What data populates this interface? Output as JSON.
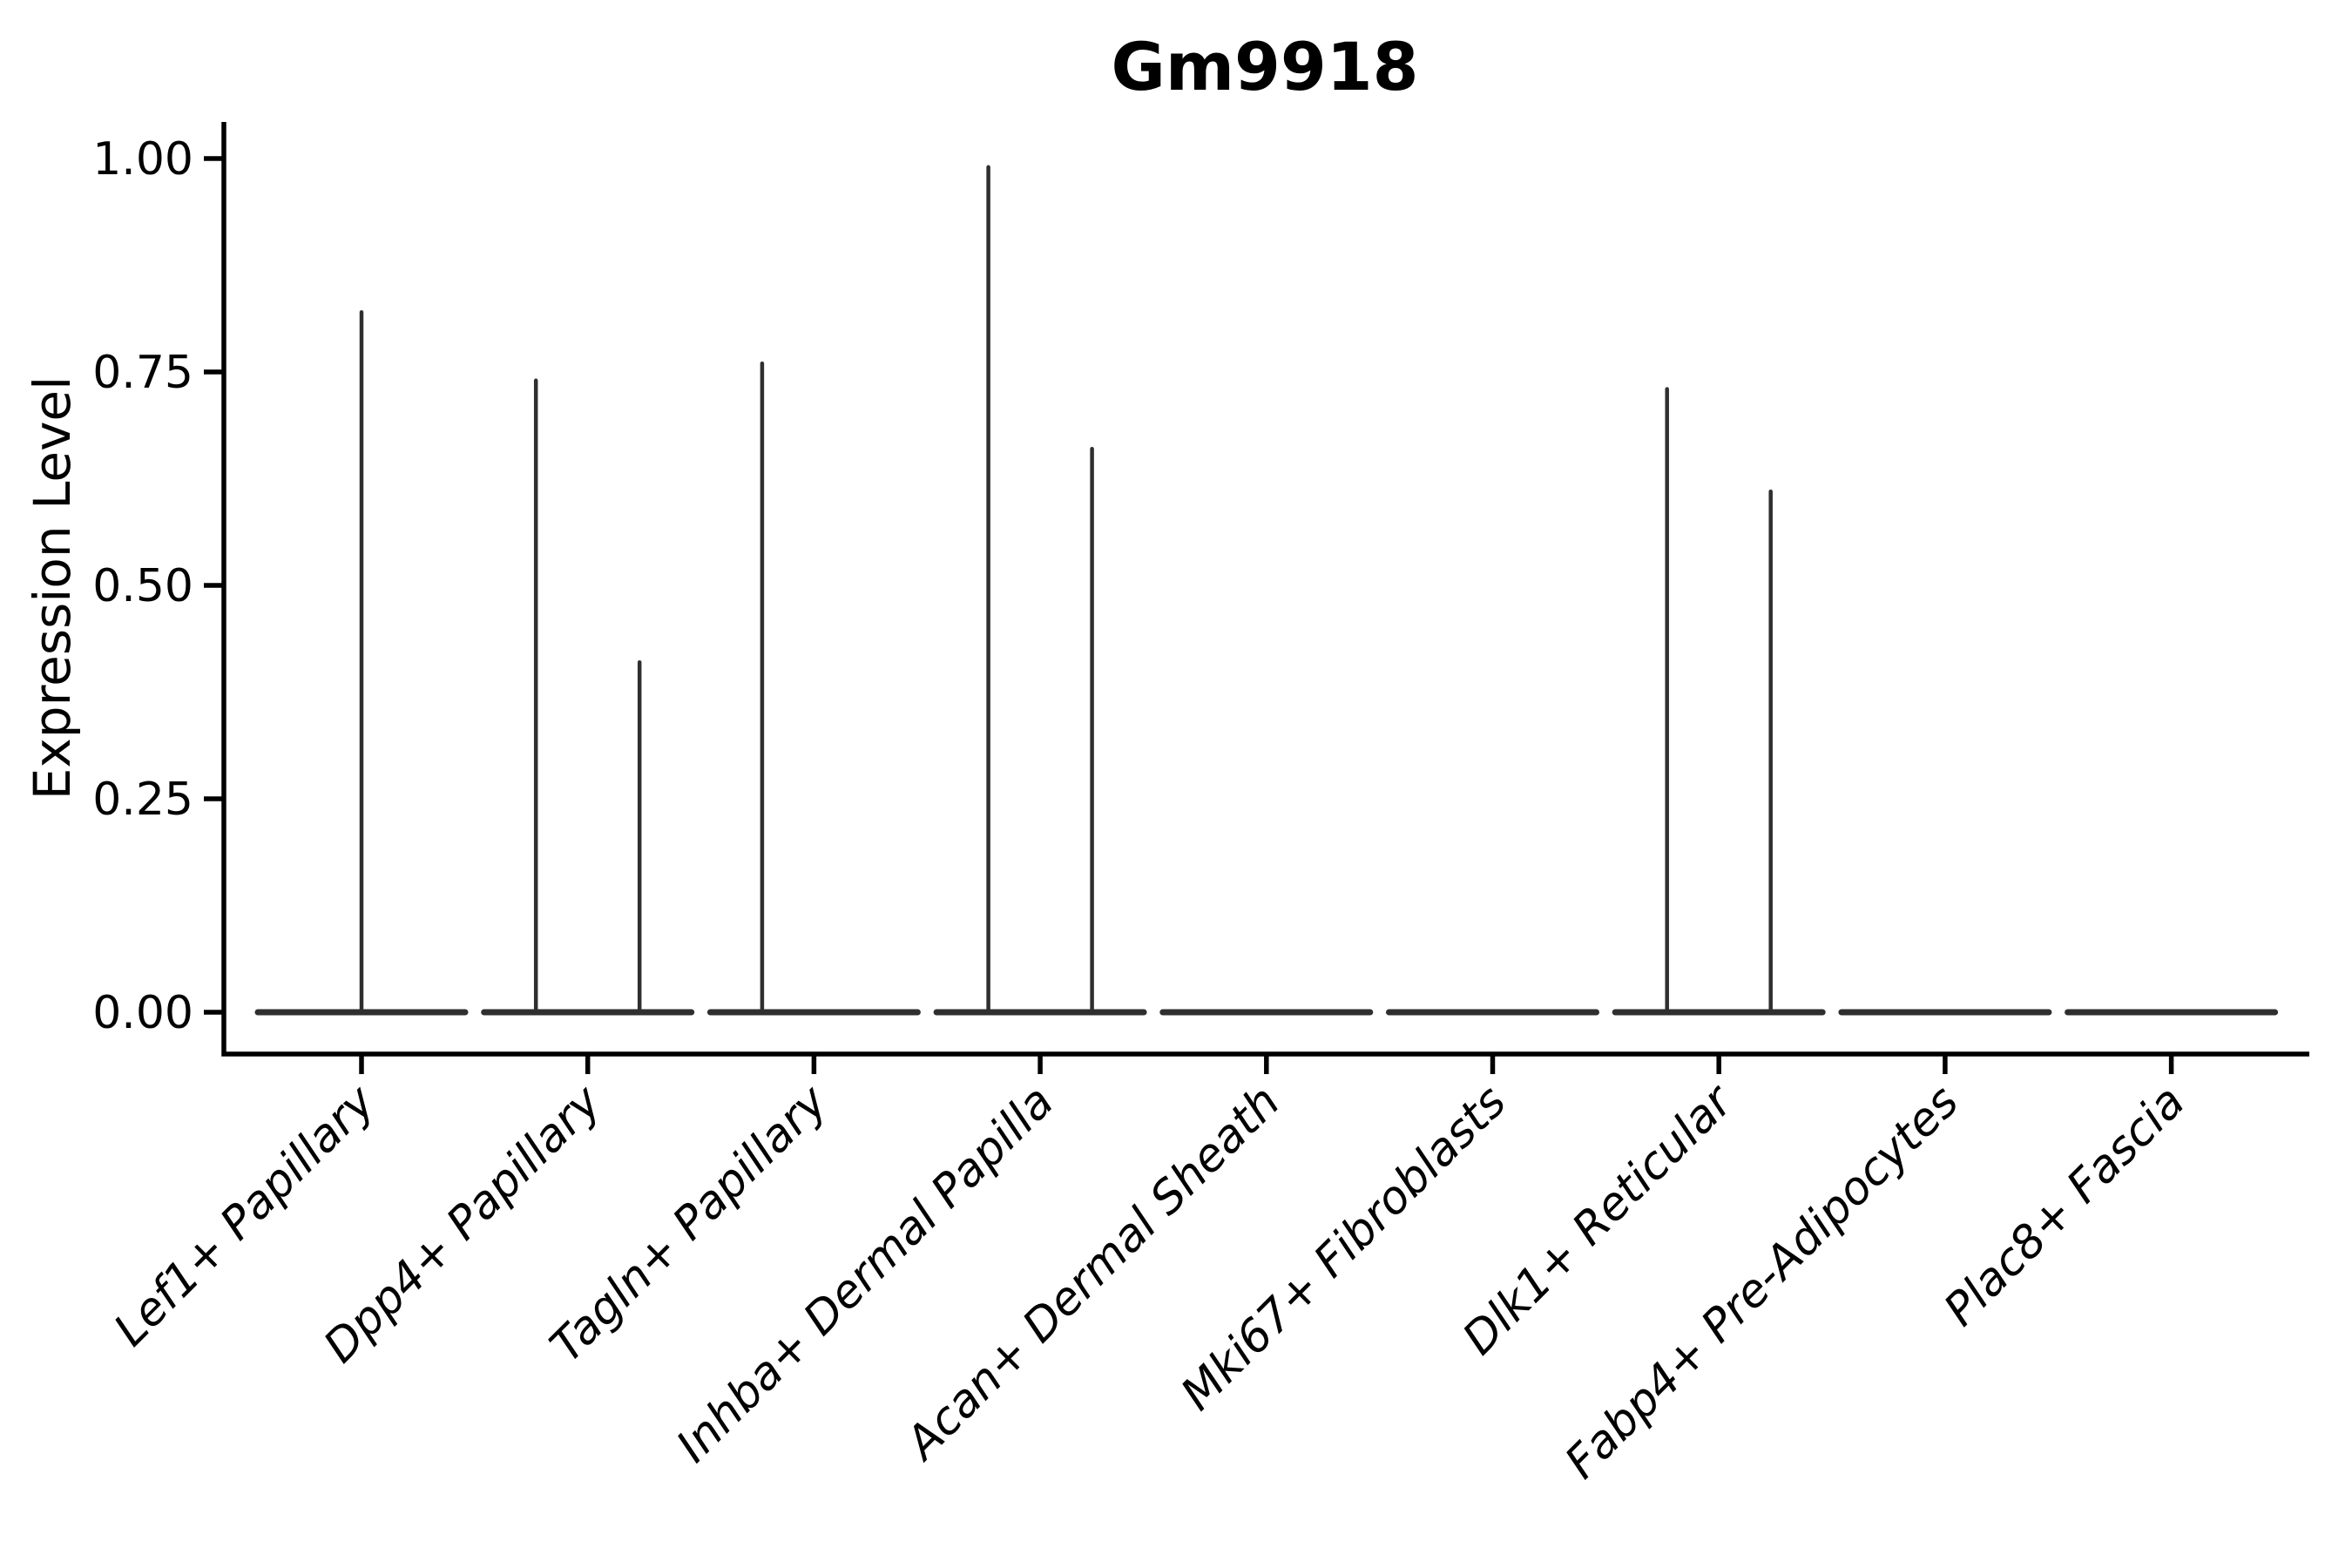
{
  "chart_data": {
    "type": "violin",
    "title": "Gm9918",
    "xlabel": "",
    "ylabel": "Expression Level",
    "ylim": [
      0,
      1.0
    ],
    "grid": false,
    "legend": false,
    "yticks": [
      "0.00",
      "0.25",
      "0.50",
      "0.75",
      "1.00"
    ],
    "categories": [
      "Lef1+ Papillary",
      "Dpp4+ Papillary",
      "Tagln+ Papillary",
      "Inhba+ Dermal Papilla",
      "Acan+ Dermal Sheath",
      "Mki67+ Fibroblasts",
      "Dlk1+ Reticular",
      "Fabp4+ Pre-Adipocytes",
      "Plac8+ Fascia"
    ],
    "series": [
      {
        "category": "Lef1+ Papillary",
        "baseline_value": 0.0,
        "spikes": [
          {
            "pos": "center",
            "max": 0.82
          }
        ]
      },
      {
        "category": "Dpp4+ Papillary",
        "baseline_value": 0.0,
        "spikes": [
          {
            "pos": "left",
            "max": 0.74
          },
          {
            "pos": "right",
            "max": 0.41
          }
        ]
      },
      {
        "category": "Tagln+ Papillary",
        "baseline_value": 0.0,
        "spikes": [
          {
            "pos": "left",
            "max": 0.76
          }
        ]
      },
      {
        "category": "Inhba+ Dermal Papilla",
        "baseline_value": 0.0,
        "spikes": [
          {
            "pos": "left",
            "max": 0.99
          },
          {
            "pos": "right",
            "max": 0.66
          }
        ]
      },
      {
        "category": "Acan+ Dermal Sheath",
        "baseline_value": 0.0,
        "spikes": []
      },
      {
        "category": "Mki67+ Fibroblasts",
        "baseline_value": 0.0,
        "spikes": []
      },
      {
        "category": "Dlk1+ Reticular",
        "baseline_value": 0.0,
        "spikes": [
          {
            "pos": "left",
            "max": 0.73
          },
          {
            "pos": "right",
            "max": 0.61
          }
        ]
      },
      {
        "category": "Fabp4+ Pre-Adipocytes",
        "baseline_value": 0.0,
        "spikes": []
      },
      {
        "category": "Plac8+ Fascia",
        "baseline_value": 0.0,
        "spikes": []
      }
    ],
    "colors": {
      "violin_stroke": "#2f2f2f",
      "axis": "#000000",
      "text": "#000000",
      "background": "#ffffff"
    }
  }
}
